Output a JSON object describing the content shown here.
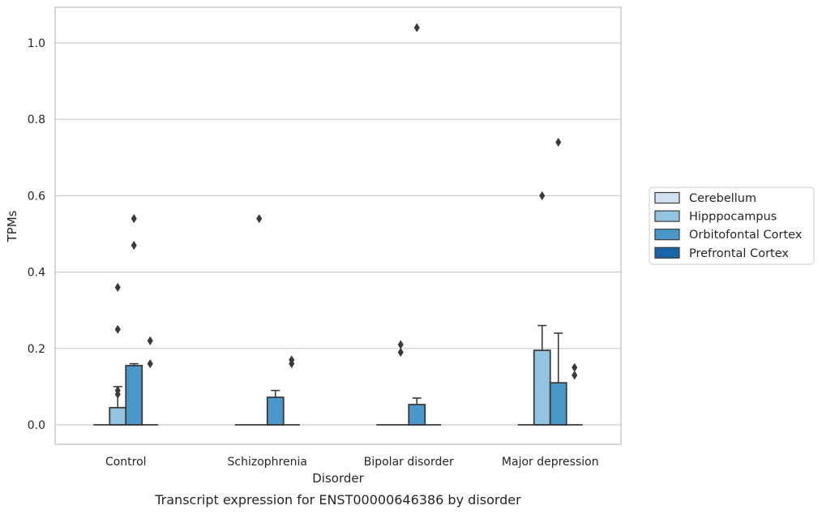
{
  "chart_data": {
    "type": "box",
    "caption": "Transcript expression for ENST00000646386 by disorder",
    "xlabel": "Disorder",
    "ylabel": "TPMs",
    "ylim": [
      -0.05,
      1.09
    ],
    "yticks": [
      0.0,
      0.2,
      0.4,
      0.6,
      0.8,
      1.0
    ],
    "ytick_labels": [
      "0.0",
      "0.2",
      "0.4",
      "0.6",
      "0.8",
      "1.0"
    ],
    "grid": "horizontal",
    "legend_position": "right",
    "categories": [
      "Control",
      "Schizophrenia",
      "Bipolar disorder",
      "Major depression"
    ],
    "series": [
      {
        "name": "Cerebellum",
        "color": "#d0e1f2",
        "boxes": [
          {
            "q1": 0,
            "median": 0,
            "q3": 0,
            "whisker_low": 0,
            "whisker_high": 0,
            "outliers": []
          },
          {
            "q1": 0,
            "median": 0,
            "q3": 0,
            "whisker_low": 0,
            "whisker_high": 0,
            "outliers": []
          },
          {
            "q1": 0,
            "median": 0,
            "q3": 0,
            "whisker_low": 0,
            "whisker_high": 0,
            "outliers": []
          },
          {
            "q1": 0,
            "median": 0,
            "q3": 0,
            "whisker_low": 0,
            "whisker_high": 0,
            "outliers": []
          }
        ]
      },
      {
        "name": "Hipppocampus",
        "color": "#94c4df",
        "boxes": [
          {
            "q1": 0,
            "median": 0,
            "q3": 0.045,
            "whisker_low": 0,
            "whisker_high": 0.1,
            "outliers": [
              0.36,
              0.25,
              0.09,
              0.08
            ]
          },
          {
            "q1": 0,
            "median": 0,
            "q3": 0,
            "whisker_low": 0,
            "whisker_high": 0,
            "outliers": [
              0.54
            ]
          },
          {
            "q1": 0,
            "median": 0,
            "q3": 0,
            "whisker_low": 0,
            "whisker_high": 0,
            "outliers": [
              0.21,
              0.19
            ]
          },
          {
            "q1": 0,
            "median": 0,
            "q3": 0.195,
            "whisker_low": 0,
            "whisker_high": 0.26,
            "outliers": [
              0.6
            ]
          }
        ]
      },
      {
        "name": "Orbitofontal Cortex",
        "color": "#4a98c9",
        "boxes": [
          {
            "q1": 0,
            "median": 0,
            "q3": 0.155,
            "whisker_low": 0,
            "whisker_high": 0.16,
            "outliers": [
              0.54,
              0.47
            ]
          },
          {
            "q1": 0,
            "median": 0,
            "q3": 0.072,
            "whisker_low": 0,
            "whisker_high": 0.09,
            "outliers": []
          },
          {
            "q1": 0,
            "median": 0,
            "q3": 0.053,
            "whisker_low": 0,
            "whisker_high": 0.07,
            "outliers": [
              1.04
            ]
          },
          {
            "q1": 0,
            "median": 0,
            "q3": 0.11,
            "whisker_low": 0,
            "whisker_high": 0.24,
            "outliers": [
              0.74
            ]
          }
        ]
      },
      {
        "name": "Prefrontal Cortex",
        "color": "#1764ab",
        "boxes": [
          {
            "q1": 0,
            "median": 0,
            "q3": 0,
            "whisker_low": 0,
            "whisker_high": 0,
            "outliers": [
              0.22,
              0.16
            ]
          },
          {
            "q1": 0,
            "median": 0,
            "q3": 0,
            "whisker_low": 0,
            "whisker_high": 0,
            "outliers": [
              0.17,
              0.16
            ]
          },
          {
            "q1": 0,
            "median": 0,
            "q3": 0,
            "whisker_low": 0,
            "whisker_high": 0,
            "outliers": []
          },
          {
            "q1": 0,
            "median": 0,
            "q3": 0,
            "whisker_low": 0,
            "whisker_high": 0,
            "outliers": [
              0.15,
              0.13
            ]
          }
        ]
      }
    ]
  }
}
